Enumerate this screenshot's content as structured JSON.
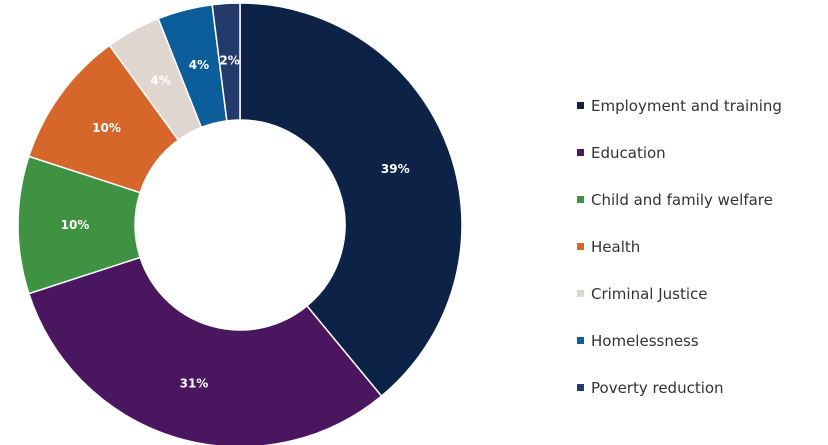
{
  "chart_data": {
    "type": "pie",
    "variant": "donut",
    "categories": [
      "Employment and training",
      "Education",
      "Child and family welfare",
      "Health",
      "Criminal Justice",
      "Homelessness",
      "Poverty reduction"
    ],
    "values": [
      39,
      31,
      10,
      10,
      4,
      4,
      2
    ],
    "labels": [
      "39%",
      "31%",
      "10%",
      "10%",
      "4%",
      "4%",
      "2%"
    ],
    "colors": [
      "#0d2247",
      "#4a1660",
      "#3e9242",
      "#d6662a",
      "#e0d6d0",
      "#0b5e99",
      "#243a6b"
    ],
    "legend": "right"
  }
}
